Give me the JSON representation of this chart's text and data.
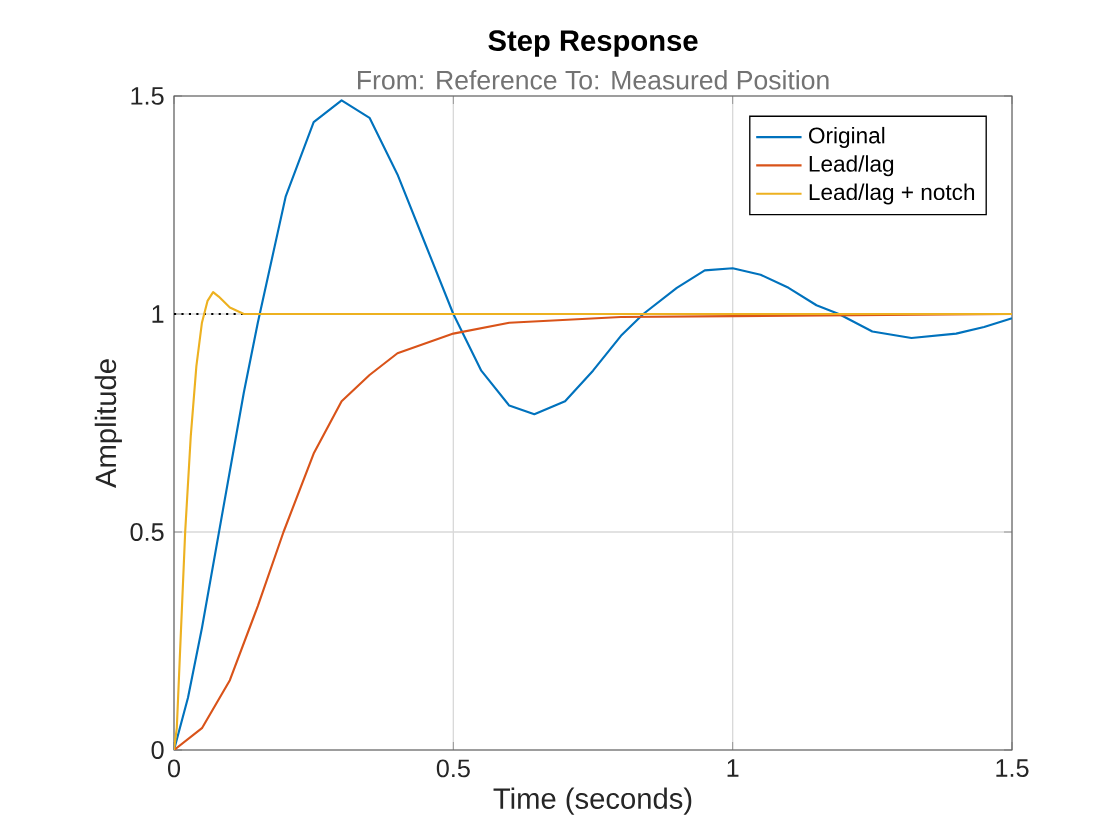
{
  "chart_data": {
    "type": "line",
    "title": "Step Response",
    "subtitle": "From: Reference  To: Measured Position",
    "xlabel": "Time (seconds)",
    "ylabel": "Amplitude",
    "xlim": [
      0,
      1.5
    ],
    "ylim": [
      0,
      1.5
    ],
    "xticks": [
      0,
      0.5,
      1,
      1.5
    ],
    "yticks": [
      0,
      0.5,
      1,
      1.5
    ],
    "grid": true,
    "legend": "top right",
    "ref_lines": [
      {
        "axis": "y",
        "value": 1,
        "color": "#000000",
        "line_style": "dotted"
      }
    ],
    "series": [
      {
        "name": "Original",
        "color": "#0072bd",
        "x": [
          0,
          0.025,
          0.05,
          0.1,
          0.125,
          0.15,
          0.2,
          0.25,
          0.3,
          0.35,
          0.4,
          0.45,
          0.5,
          0.55,
          0.6,
          0.645,
          0.7,
          0.75,
          0.8,
          0.84,
          0.9,
          0.95,
          1.0,
          1.05,
          1.1,
          1.15,
          1.19,
          1.25,
          1.32,
          1.4,
          1.45,
          1.5
        ],
        "values": [
          0,
          0.12,
          0.28,
          0.64,
          0.82,
          0.98,
          1.27,
          1.44,
          1.49,
          1.45,
          1.32,
          1.16,
          1.0,
          0.87,
          0.79,
          0.77,
          0.8,
          0.87,
          0.95,
          1.0,
          1.06,
          1.1,
          1.105,
          1.09,
          1.06,
          1.02,
          1.0,
          0.96,
          0.945,
          0.955,
          0.97,
          0.99
        ]
      },
      {
        "name": "Lead/lag",
        "color": "#d95319",
        "x": [
          0,
          0.05,
          0.1,
          0.15,
          0.196,
          0.25,
          0.3,
          0.35,
          0.4,
          0.5,
          0.6,
          0.8,
          1.0,
          1.5
        ],
        "values": [
          0,
          0.05,
          0.16,
          0.33,
          0.5,
          0.68,
          0.8,
          0.86,
          0.91,
          0.955,
          0.98,
          0.993,
          0.995,
          1.0
        ]
      },
      {
        "name": "Lead/lag + notch",
        "color": "#edb120",
        "x": [
          0,
          0.005,
          0.01,
          0.02,
          0.03,
          0.04,
          0.05,
          0.06,
          0.07,
          0.08,
          0.1,
          0.125,
          1.5
        ],
        "values": [
          0,
          0.05,
          0.2,
          0.5,
          0.72,
          0.88,
          0.98,
          1.03,
          1.05,
          1.04,
          1.015,
          1.0,
          1.0
        ]
      }
    ]
  }
}
